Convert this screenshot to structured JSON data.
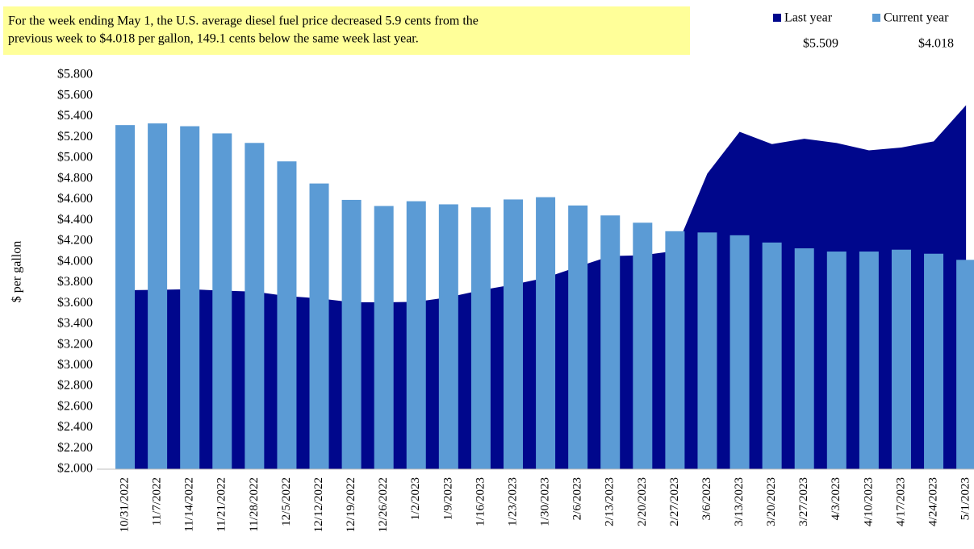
{
  "chart_data": {
    "type": "bar-area",
    "annotation": [
      "For the week ending  May 1, the U.S. average diesel fuel price decreased 5.9 cents from the",
      "previous week to $4.018  per gallon,  149.1  cents below  the same week last year."
    ],
    "y_axis_label": "$ per gallon",
    "categories": [
      "10/31/2022",
      "11/7/2022",
      "11/14/2022",
      "11/21/2022",
      "11/28/2022",
      "12/5/2022",
      "12/12/2022",
      "12/19/2022",
      "12/26/2022",
      "1/2/2023",
      "1/9/2023",
      "1/16/2023",
      "1/23/2023",
      "1/30/2023",
      "2/6/2023",
      "2/13/2023",
      "2/20/2023",
      "2/27/2023",
      "3/6/2023",
      "3/13/2023",
      "3/20/2023",
      "3/27/2023",
      "4/3/2023",
      "4/10/2023",
      "4/17/2023",
      "4/24/2023",
      "5/1/2023"
    ],
    "series": [
      {
        "name": "Last year",
        "type": "area",
        "color": "#00078c",
        "legend_value": "$5.509",
        "values": [
          3.725,
          3.729,
          3.735,
          3.721,
          3.712,
          3.669,
          3.646,
          3.61,
          3.609,
          3.613,
          3.657,
          3.725,
          3.78,
          3.846,
          3.951,
          4.054,
          4.062,
          4.104,
          4.849,
          5.252,
          5.134,
          5.185,
          5.144,
          5.073,
          5.101,
          5.16,
          5.509
        ]
      },
      {
        "name": "Current year",
        "type": "bar",
        "color": "#5b9bd5",
        "legend_value": "$4.018",
        "values": [
          5.317,
          5.333,
          5.306,
          5.237,
          5.145,
          4.967,
          4.754,
          4.596,
          4.537,
          4.583,
          4.553,
          4.524,
          4.6,
          4.622,
          4.542,
          4.446,
          4.376,
          4.294,
          4.282,
          4.255,
          4.185,
          4.129,
          4.098,
          4.098,
          4.116,
          4.077,
          4.018
        ]
      }
    ],
    "ylim": [
      2.0,
      5.8
    ],
    "yticks": [
      {
        "value": 2.0,
        "label": "$2.000"
      },
      {
        "value": 2.2,
        "label": "$2.200"
      },
      {
        "value": 2.4,
        "label": "$2.400"
      },
      {
        "value": 2.6,
        "label": "$2.600"
      },
      {
        "value": 2.8,
        "label": "$2.800"
      },
      {
        "value": 3.0,
        "label": "$3.000"
      },
      {
        "value": 3.2,
        "label": "$3.200"
      },
      {
        "value": 3.4,
        "label": "$3.400"
      },
      {
        "value": 3.6,
        "label": "$3.600"
      },
      {
        "value": 3.8,
        "label": "$3.800"
      },
      {
        "value": 4.0,
        "label": "$4.000"
      },
      {
        "value": 4.2,
        "label": "$4.200"
      },
      {
        "value": 4.4,
        "label": "$4.400"
      },
      {
        "value": 4.6,
        "label": "$4.600"
      },
      {
        "value": 4.8,
        "label": "$4.800"
      },
      {
        "value": 5.0,
        "label": "$5.000"
      },
      {
        "value": 5.2,
        "label": "$5.200"
      },
      {
        "value": 5.4,
        "label": "$5.400"
      },
      {
        "value": 5.6,
        "label": "$5.600"
      },
      {
        "value": 5.8,
        "label": "$5.800"
      }
    ],
    "grid": false
  }
}
